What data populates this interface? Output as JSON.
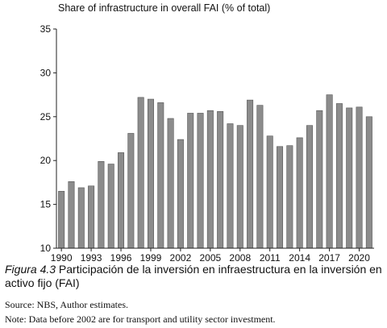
{
  "chart_data": {
    "type": "bar",
    "title": "Share of infrastructure in overall FAI (% of total)",
    "xlabel": "",
    "ylabel": "",
    "ylim": [
      10,
      35
    ],
    "yticks": [
      10,
      15,
      20,
      25,
      30,
      35
    ],
    "x_tick_labels": [
      "1990",
      "1993",
      "1996",
      "1999",
      "2002",
      "2005",
      "2008",
      "2011",
      "2014",
      "2017",
      "2020"
    ],
    "categories": [
      "1990",
      "1991",
      "1992",
      "1993",
      "1994",
      "1995",
      "1996",
      "1997",
      "1998",
      "1999",
      "2000",
      "2001",
      "2002",
      "2003",
      "2004",
      "2005",
      "2006",
      "2007",
      "2008",
      "2009",
      "2010",
      "2011",
      "2012",
      "2013",
      "2014",
      "2015",
      "2016",
      "2017",
      "2018",
      "2019",
      "2020",
      "2021"
    ],
    "values": [
      16.5,
      17.6,
      16.9,
      17.1,
      19.9,
      19.6,
      20.9,
      23.1,
      27.2,
      27.0,
      26.6,
      24.8,
      22.4,
      25.4,
      25.4,
      25.7,
      25.6,
      24.2,
      24.0,
      26.9,
      26.3,
      22.8,
      21.6,
      21.7,
      22.6,
      24.0,
      25.7,
      27.5,
      26.5,
      26.0,
      26.1,
      25.0
    ],
    "bar_color": "#8c8c8c",
    "grid": false,
    "legend": "none"
  },
  "caption": {
    "figure_label": "Figura 4.3",
    "text": " Participación de la inversión en infraestructura en la inversión en activo fijo (FAI)"
  },
  "source": "Source: NBS, Author estimates.",
  "note": "Note: Data before 2002 are for transport and utility sector investment."
}
